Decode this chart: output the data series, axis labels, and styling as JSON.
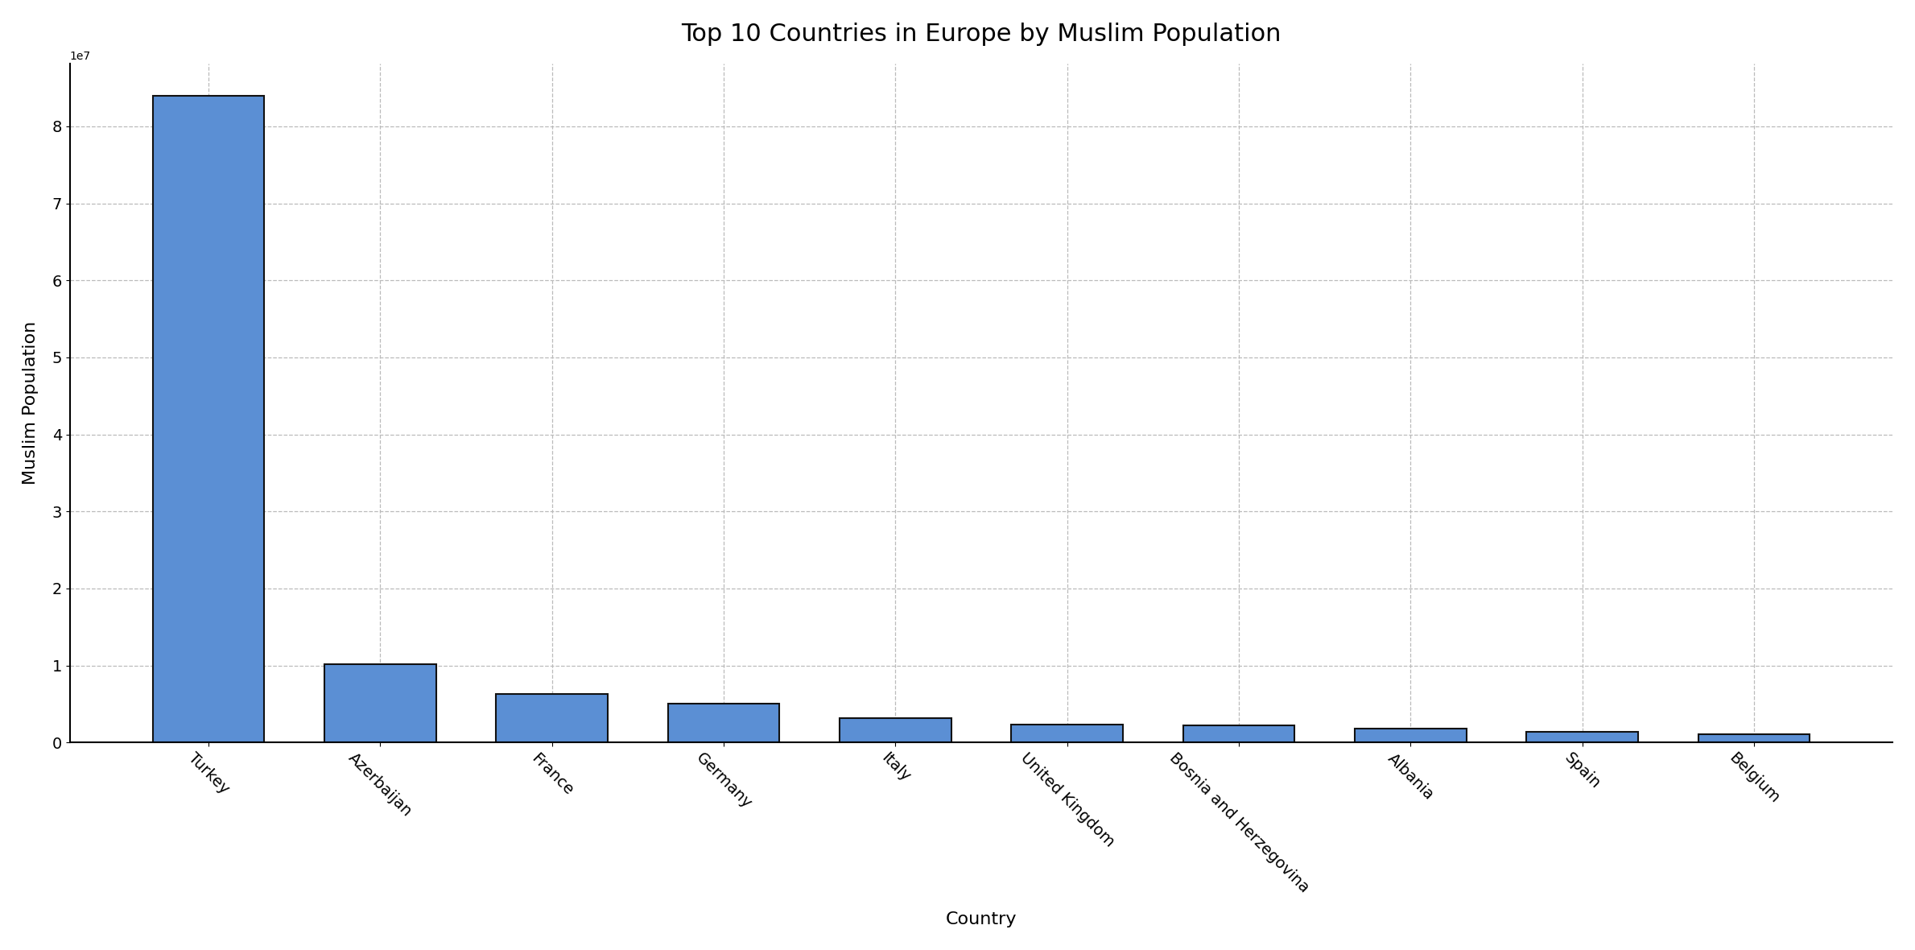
{
  "title": "Top 10 Countries in Europe by Muslim Population",
  "xlabel": "Country",
  "ylabel": "Muslim Population",
  "categories": [
    "Turkey",
    "Azerbaijan",
    "France",
    "Germany",
    "Italy",
    "United Kingdom",
    "Bosnia and Herzegovina",
    "Albania",
    "Spain",
    "Belgium"
  ],
  "values": [
    84000000,
    10200000,
    6300000,
    5000000,
    3200000,
    2300000,
    2200000,
    1800000,
    1400000,
    1100000
  ],
  "bar_color": "#5b8fd4",
  "bar_edgecolor": "#111111",
  "background_color": "#ffffff",
  "grid_color": "#bbbbbb",
  "title_fontsize": 22,
  "label_fontsize": 16,
  "tick_fontsize": 14,
  "bar_linewidth": 1.5,
  "bar_width": 0.65
}
